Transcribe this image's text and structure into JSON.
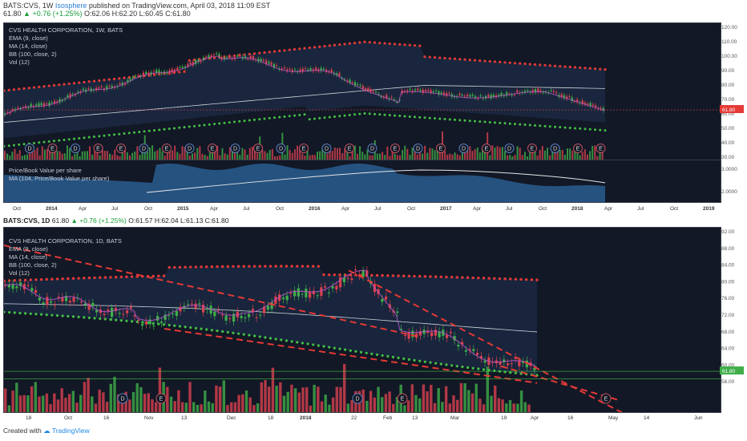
{
  "header": {
    "title_prefix": "BATS:CVS, 1W",
    "author": "Isosphere",
    "published": "published on TradingView.com, April 03, 2018 11:09 EST",
    "last": "61.80",
    "change": "+0.76 (+1.25%)",
    "ohlc": "O:62.06 H:62.20 L:60.45 C:61.80"
  },
  "weekly": {
    "title": "CVS HEALTH CORPORATION, 1W, BATS",
    "indicators": [
      "EMA (9, close)",
      "MA (14, close)",
      "BB (100, close, 2)",
      "Vol (12)"
    ],
    "price_labels": [
      "120.00",
      "110.00",
      "100.00",
      "90.00",
      "80.00",
      "70.00",
      "60.00",
      "50.00",
      "40.00",
      "30.00"
    ],
    "last_price_label": "61.80",
    "x_labels": [
      "Oct",
      "2014",
      "Apr",
      "Jul",
      "Oct",
      "2015",
      "Apr",
      "Jul",
      "Oct",
      "2016",
      "Apr",
      "Jul",
      "Oct",
      "2017",
      "Apr",
      "Jul",
      "Oct",
      "2018",
      "Apr",
      "Jul",
      "Oct",
      "2019"
    ],
    "events": [
      "D",
      "E",
      "D",
      "E",
      "E",
      "D",
      "E",
      "D",
      "E",
      "D",
      "E",
      "D",
      "E",
      "D",
      "E",
      "D",
      "E",
      "D",
      "E",
      "D",
      "E",
      "D",
      "E",
      "D",
      "E",
      "E"
    ]
  },
  "pbv": {
    "labels": [
      "Price/Book Value per share",
      "MA (104, Price/Book Value per share)"
    ],
    "axis": [
      "3.0000",
      "2.0000"
    ]
  },
  "daily": {
    "header_prefix": "BATS:CVS, 1D",
    "last": "61.80",
    "change": "+0.76 (+1.25%)",
    "ohlc": "O:61.57 H:62.04 L:61.13 C:61.80",
    "title": "CVS HEALTH CORPORATION, 1D, BATS",
    "indicators": [
      "EMA (9, close)",
      "MA (14, close)",
      "BB (100, close, 2)",
      "Vol (12)"
    ],
    "price_labels": [
      "92.00",
      "88.00",
      "84.00",
      "80.00",
      "76.00",
      "72.00",
      "68.00",
      "64.00",
      "60.00",
      "56.00"
    ],
    "last_price_label": "61.80",
    "x_labels": [
      "18",
      "Oct",
      "16",
      "Nov",
      "13",
      "Dec",
      "18",
      "2018",
      "22",
      "Feb",
      "13",
      "Mar",
      "19",
      "Apr",
      "16",
      "May",
      "14",
      "Jun"
    ],
    "events": [
      "D",
      "E",
      "D",
      "E"
    ]
  },
  "footer": {
    "created": "Created with",
    "brand": "TradingView"
  },
  "colors": {
    "panel_bg": "#121826",
    "up": "#3fae49",
    "down": "#d9414f",
    "bb_red": "#e53935",
    "bb_green": "#43c043",
    "trend": "#e53935"
  }
}
